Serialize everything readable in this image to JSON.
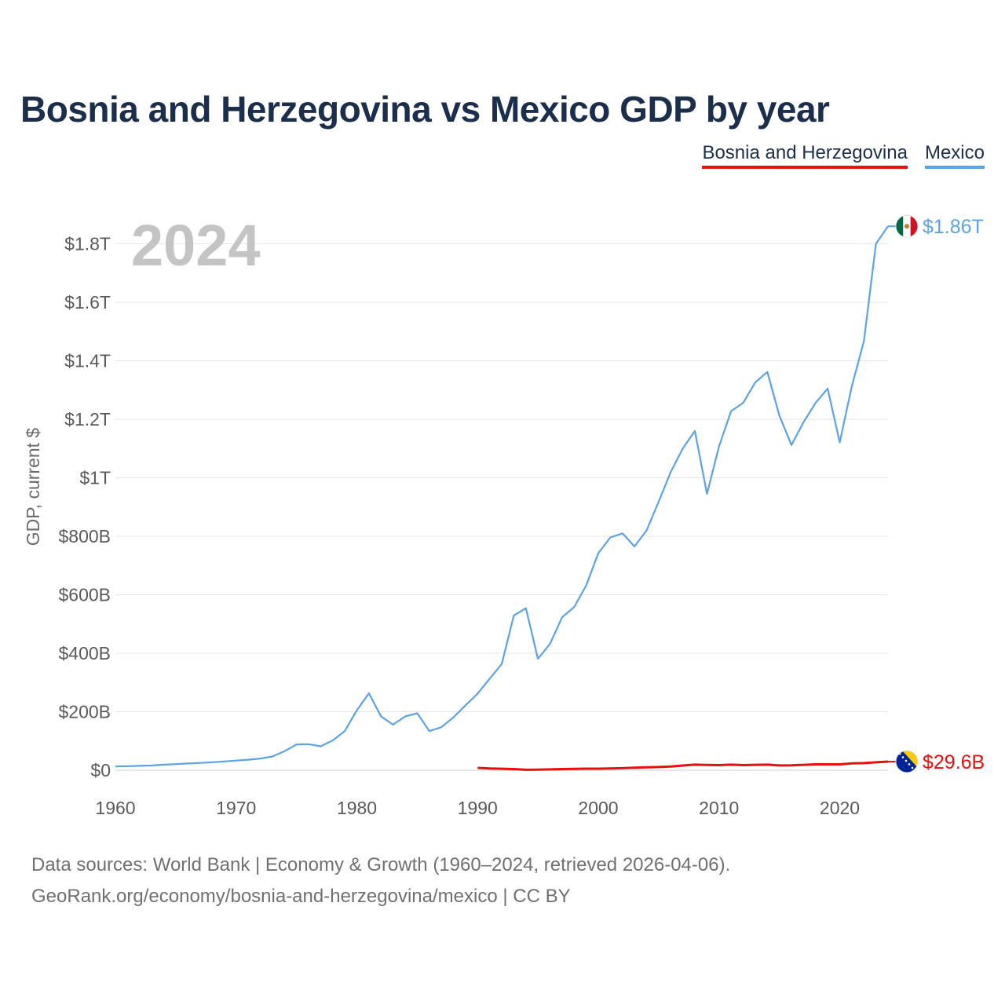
{
  "title": "Bosnia and Herzegovina vs Mexico GDP by year",
  "legend": [
    {
      "label": "Bosnia and Herzegovina",
      "color": "#e8100f"
    },
    {
      "label": "Mexico",
      "color": "#5ba3e3"
    }
  ],
  "year_overlay": "2024",
  "footer": {
    "line1": "Data sources: World Bank | Economy & Growth (1960–2024, retrieved 2026-04-06).",
    "line2": "GeoRank.org/economy/bosnia-and-herzegovina/mexico | CC BY"
  },
  "chart_data": {
    "type": "line",
    "title": "Bosnia and Herzegovina vs Mexico GDP by year",
    "xlabel": "",
    "ylabel": "GDP, current $",
    "xlim": [
      1960,
      2024
    ],
    "ylim": [
      0,
      1900
    ],
    "y_unit": "billions USD",
    "x_ticks": [
      1960,
      1970,
      1980,
      1990,
      2000,
      2010,
      2020
    ],
    "y_ticks": [
      0,
      200,
      400,
      600,
      800,
      1000,
      1200,
      1400,
      1600,
      1800
    ],
    "y_tick_labels": [
      "$0",
      "$200B",
      "$400B",
      "$600B",
      "$800B",
      "$1T",
      "$1.2T",
      "$1.4T",
      "$1.6T",
      "$1.8T"
    ],
    "grid": true,
    "legend_position": "top-right",
    "series": [
      {
        "name": "Mexico",
        "color": "#5ba3e3",
        "end_label": "$1.86T",
        "flag_icon": "mexico-flag-icon",
        "x": [
          1960,
          1961,
          1962,
          1963,
          1964,
          1965,
          1966,
          1967,
          1968,
          1969,
          1970,
          1971,
          1972,
          1973,
          1974,
          1975,
          1976,
          1977,
          1978,
          1979,
          1980,
          1981,
          1982,
          1983,
          1984,
          1985,
          1986,
          1987,
          1988,
          1989,
          1990,
          1991,
          1992,
          1993,
          1994,
          1995,
          1996,
          1997,
          1998,
          1999,
          2000,
          2001,
          2002,
          2003,
          2004,
          2005,
          2006,
          2007,
          2008,
          2009,
          2010,
          2011,
          2012,
          2013,
          2014,
          2015,
          2016,
          2017,
          2018,
          2019,
          2020,
          2021,
          2022,
          2023,
          2024
        ],
        "values": [
          13,
          14,
          15,
          16,
          19,
          21,
          23,
          25,
          27,
          30,
          33,
          36,
          40,
          47,
          65,
          88,
          89,
          82,
          102,
          134,
          205,
          263,
          184,
          156,
          184,
          195,
          134,
          147,
          181,
          222,
          262,
          313,
          363,
          529,
          554,
          381,
          432,
          523,
          558,
          632,
          742,
          796,
          810,
          765,
          820,
          918,
          1020,
          1100,
          1160,
          945,
          1108,
          1228,
          1256,
          1326,
          1362,
          1213,
          1112,
          1190,
          1256,
          1305,
          1121,
          1313,
          1467,
          1800,
          1860
        ]
      },
      {
        "name": "Bosnia and Herzegovina",
        "color": "#e8100f",
        "end_label": "$29.6B",
        "flag_icon": "bosnia-flag-icon",
        "x": [
          1990,
          1991,
          1992,
          1993,
          1994,
          1995,
          1996,
          1997,
          1998,
          1999,
          2000,
          2001,
          2002,
          2003,
          2004,
          2005,
          2006,
          2007,
          2008,
          2009,
          2010,
          2011,
          2012,
          2013,
          2014,
          2015,
          2016,
          2017,
          2018,
          2019,
          2020,
          2021,
          2022,
          2023,
          2024
        ],
        "values": [
          8,
          6,
          5,
          4,
          1.5,
          2,
          3,
          4,
          4.5,
          5.5,
          5.5,
          6,
          7,
          8.5,
          10,
          11,
          13,
          16,
          19,
          18,
          17.5,
          19,
          17.5,
          18.5,
          19,
          16.5,
          17,
          18.5,
          20,
          20,
          20,
          23.5,
          24.5,
          27,
          29.6
        ]
      }
    ]
  }
}
